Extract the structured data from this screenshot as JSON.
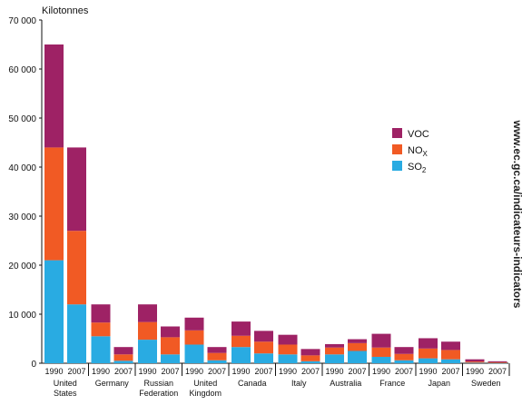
{
  "chart_data": {
    "type": "bar",
    "stacked": true,
    "ylabel": "Kilotonnes",
    "ylim": [
      0,
      70000
    ],
    "yticks": [
      "0",
      "10 000",
      "20 000",
      "30 000",
      "40 000",
      "50 000",
      "60 000",
      "70 000"
    ],
    "yticks_values": [
      0,
      10000,
      20000,
      30000,
      40000,
      50000,
      60000,
      70000
    ],
    "grid": false,
    "legend_position": "right",
    "watermark": "www.ec.gc.ca/indicateurs-indicators",
    "colors": {
      "SO2": "#29abe2",
      "NOx": "#f15a24",
      "VOC": "#9e2265"
    },
    "legend": [
      {
        "key": "VOC",
        "label": "VOC",
        "sub": ""
      },
      {
        "key": "NOx",
        "label": "NO",
        "sub": "X"
      },
      {
        "key": "SO2",
        "label": "SO",
        "sub": "2"
      }
    ],
    "countries": [
      {
        "name": [
          "United",
          "States"
        ]
      },
      {
        "name": [
          "Germany"
        ]
      },
      {
        "name": [
          "Russian",
          "Federation"
        ]
      },
      {
        "name": [
          "United",
          "Kingdom"
        ]
      },
      {
        "name": [
          "Canada"
        ]
      },
      {
        "name": [
          "Italy"
        ]
      },
      {
        "name": [
          "Australia"
        ]
      },
      {
        "name": [
          "France"
        ]
      },
      {
        "name": [
          "Japan"
        ]
      },
      {
        "name": [
          "Sweden"
        ]
      }
    ],
    "years": [
      "1990",
      "2007"
    ],
    "series": [
      {
        "name": "SO2",
        "values": [
          [
            21000,
            12000
          ],
          [
            5500,
            500
          ],
          [
            4800,
            1800
          ],
          [
            3800,
            600
          ],
          [
            3300,
            2000
          ],
          [
            1800,
            400
          ],
          [
            1800,
            2500
          ],
          [
            1300,
            600
          ],
          [
            1000,
            800
          ],
          [
            100,
            50
          ]
        ]
      },
      {
        "name": "NOx",
        "values": [
          [
            23000,
            15000
          ],
          [
            2800,
            1300
          ],
          [
            3600,
            3500
          ],
          [
            2900,
            1500
          ],
          [
            2300,
            2400
          ],
          [
            2000,
            1200
          ],
          [
            1400,
            1600
          ],
          [
            1900,
            1300
          ],
          [
            2000,
            1900
          ],
          [
            250,
            150
          ]
        ]
      },
      {
        "name": "VOC",
        "values": [
          [
            21000,
            17000
          ],
          [
            3700,
            1500
          ],
          [
            3600,
            2200
          ],
          [
            2600,
            1200
          ],
          [
            2900,
            2200
          ],
          [
            2000,
            1300
          ],
          [
            700,
            800
          ],
          [
            2800,
            1400
          ],
          [
            2100,
            1700
          ],
          [
            450,
            200
          ]
        ]
      }
    ]
  }
}
